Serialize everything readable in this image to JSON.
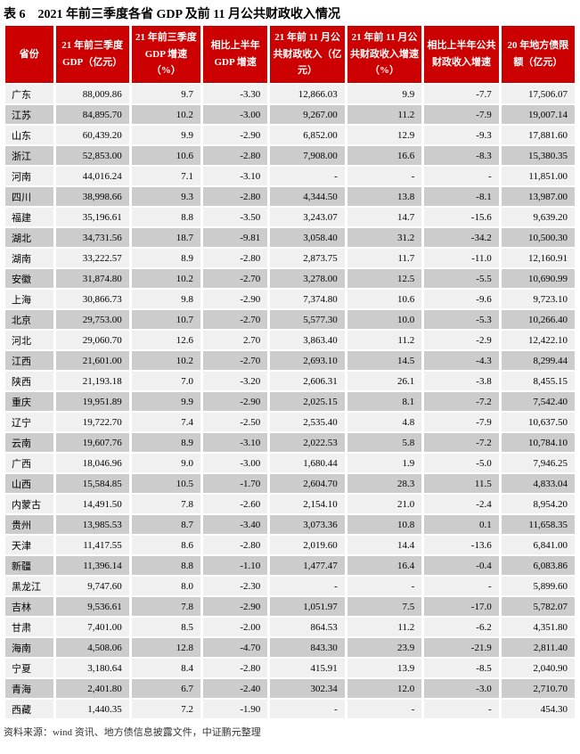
{
  "title": "表 6　2021 年前三季度各省 GDP 及前 11 月公共财政收入情况",
  "footer": "资料来源：wind 资讯、地方债信息披露文件，中证鹏元整理",
  "colors": {
    "header_bg": "#cc0000",
    "header_text": "#ffffff",
    "row_light": "#f0f0f0",
    "row_dark": "#cccccc"
  },
  "chart_data": {
    "type": "table",
    "title": "表 6　2021 年前三季度各省 GDP 及前 11 月公共财政收入情况",
    "headers": [
      "省份",
      "21 年前三季度 GDP（亿元）",
      "21 年前三季度 GDP 增速（%）",
      "相比上半年 GDP 增速",
      "21 年前 11 月公共财政收入（亿元）",
      "21 年前 11 月公共财政收入增速（%）",
      "相比上半年公共财政收入增速",
      "20 年地方债限额（亿元）"
    ],
    "rows": [
      [
        "广东",
        "88,009.86",
        "9.7",
        "-3.30",
        "12,866.03",
        "9.9",
        "-7.7",
        "17,506.07"
      ],
      [
        "江苏",
        "84,895.70",
        "10.2",
        "-3.00",
        "9,267.00",
        "11.2",
        "-7.9",
        "19,007.14"
      ],
      [
        "山东",
        "60,439.20",
        "9.9",
        "-2.90",
        "6,852.00",
        "12.9",
        "-9.3",
        "17,881.60"
      ],
      [
        "浙江",
        "52,853.00",
        "10.6",
        "-2.80",
        "7,908.00",
        "16.6",
        "-8.3",
        "15,380.35"
      ],
      [
        "河南",
        "44,016.24",
        "7.1",
        "-3.10",
        "-",
        "-",
        "-",
        "11,851.00"
      ],
      [
        "四川",
        "38,998.66",
        "9.3",
        "-2.80",
        "4,344.50",
        "13.8",
        "-8.1",
        "13,987.00"
      ],
      [
        "福建",
        "35,196.61",
        "8.8",
        "-3.50",
        "3,243.07",
        "14.7",
        "-15.6",
        "9,639.20"
      ],
      [
        "湖北",
        "34,731.56",
        "18.7",
        "-9.81",
        "3,058.40",
        "31.2",
        "-34.2",
        "10,500.30"
      ],
      [
        "湖南",
        "33,222.57",
        "8.9",
        "-2.80",
        "2,873.75",
        "11.7",
        "-11.0",
        "12,160.91"
      ],
      [
        "安徽",
        "31,874.80",
        "10.2",
        "-2.70",
        "3,278.00",
        "12.5",
        "-5.5",
        "10,690.99"
      ],
      [
        "上海",
        "30,866.73",
        "9.8",
        "-2.90",
        "7,374.80",
        "10.6",
        "-9.6",
        "9,723.10"
      ],
      [
        "北京",
        "29,753.00",
        "10.7",
        "-2.70",
        "5,577.30",
        "10.0",
        "-5.3",
        "10,266.40"
      ],
      [
        "河北",
        "29,060.70",
        "12.6",
        "2.70",
        "3,863.40",
        "11.2",
        "-2.9",
        "12,422.10"
      ],
      [
        "江西",
        "21,601.00",
        "10.2",
        "-2.70",
        "2,693.10",
        "14.5",
        "-4.3",
        "8,299.44"
      ],
      [
        "陕西",
        "21,193.18",
        "7.0",
        "-3.20",
        "2,606.31",
        "26.1",
        "-3.8",
        "8,455.15"
      ],
      [
        "重庆",
        "19,951.89",
        "9.9",
        "-2.90",
        "2,025.15",
        "8.1",
        "-7.2",
        "7,542.40"
      ],
      [
        "辽宁",
        "19,722.70",
        "7.4",
        "-2.50",
        "2,535.40",
        "4.8",
        "-7.9",
        "10,637.50"
      ],
      [
        "云南",
        "19,607.76",
        "8.9",
        "-3.10",
        "2,022.53",
        "5.8",
        "-7.2",
        "10,784.10"
      ],
      [
        "广西",
        "18,046.96",
        "9.0",
        "-3.00",
        "1,680.44",
        "1.9",
        "-5.0",
        "7,946.25"
      ],
      [
        "山西",
        "15,584.85",
        "10.5",
        "-1.70",
        "2,604.70",
        "28.3",
        "11.5",
        "4,833.04"
      ],
      [
        "内蒙古",
        "14,491.50",
        "7.8",
        "-2.60",
        "2,154.10",
        "21.0",
        "-2.4",
        "8,954.20"
      ],
      [
        "贵州",
        "13,985.53",
        "8.7",
        "-3.40",
        "3,073.36",
        "10.8",
        "0.1",
        "11,658.35"
      ],
      [
        "天津",
        "11,417.55",
        "8.6",
        "-2.80",
        "2,019.60",
        "14.4",
        "-13.6",
        "6,841.00"
      ],
      [
        "新疆",
        "11,396.14",
        "8.8",
        "-1.10",
        "1,477.47",
        "16.4",
        "-0.4",
        "6,083.86"
      ],
      [
        "黑龙江",
        "9,747.60",
        "8.0",
        "-2.30",
        "-",
        "-",
        "-",
        "5,899.60"
      ],
      [
        "吉林",
        "9,536.61",
        "7.8",
        "-2.90",
        "1,051.97",
        "7.5",
        "-17.0",
        "5,782.07"
      ],
      [
        "甘肃",
        "7,401.00",
        "8.5",
        "-2.00",
        "864.53",
        "11.2",
        "-6.2",
        "4,351.80"
      ],
      [
        "海南",
        "4,508.06",
        "12.8",
        "-4.70",
        "843.30",
        "23.9",
        "-21.9",
        "2,811.40"
      ],
      [
        "宁夏",
        "3,180.64",
        "8.4",
        "-2.80",
        "415.91",
        "13.9",
        "-8.5",
        "2,040.90"
      ],
      [
        "青海",
        "2,401.80",
        "6.7",
        "-2.40",
        "302.34",
        "12.0",
        "-3.0",
        "2,710.70"
      ],
      [
        "西藏",
        "1,440.35",
        "7.2",
        "-1.90",
        "-",
        "-",
        "-",
        "454.30"
      ]
    ]
  }
}
